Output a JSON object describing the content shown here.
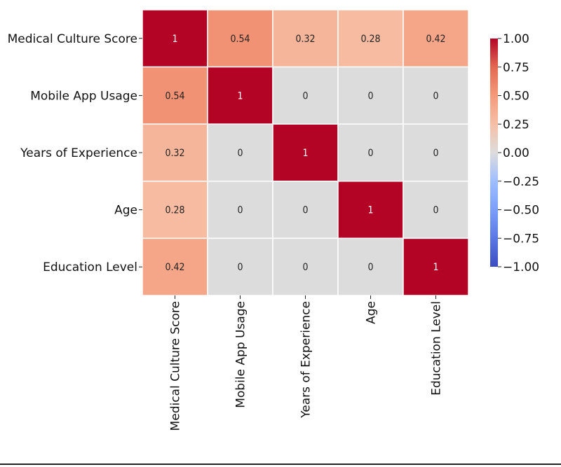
{
  "chart_data": {
    "type": "heatmap",
    "title": "",
    "xlabel": "",
    "ylabel": "",
    "row_labels": [
      "Medical Culture Score",
      "Mobile App Usage",
      "Years of Experience",
      "Age",
      "Education Level"
    ],
    "col_labels": [
      "Medical Culture Score",
      "Mobile App Usage",
      "Years of Experience",
      "Age",
      "Education Level"
    ],
    "values": [
      [
        1,
        0.54,
        0.32,
        0.28,
        0.42
      ],
      [
        0.54,
        1,
        0,
        0,
        0
      ],
      [
        0.32,
        0,
        1,
        0,
        0
      ],
      [
        0.28,
        0,
        0,
        1,
        0
      ],
      [
        0.42,
        0,
        0,
        0,
        1
      ]
    ],
    "annotations": [
      [
        "1",
        "0.54",
        "0.32",
        "0.28",
        "0.42"
      ],
      [
        "0.54",
        "1",
        "0",
        "0",
        "0"
      ],
      [
        "0.32",
        "0",
        "1",
        "0",
        "0"
      ],
      [
        "0.28",
        "0",
        "0",
        "1",
        "0"
      ],
      [
        "0.42",
        "0",
        "0",
        "0",
        "1"
      ]
    ],
    "colormap": "coolwarm",
    "vmin": -1,
    "vmax": 1,
    "colorbar": {
      "ticks": [
        1,
        0.75,
        0.5,
        0.25,
        0,
        -0.25,
        -0.5,
        -0.75,
        -1
      ],
      "tick_labels": [
        "1.00",
        "0.75",
        "0.50",
        "0.25",
        "0.00",
        "−0.25",
        "−0.50",
        "−0.75",
        "−1.00"
      ]
    }
  }
}
